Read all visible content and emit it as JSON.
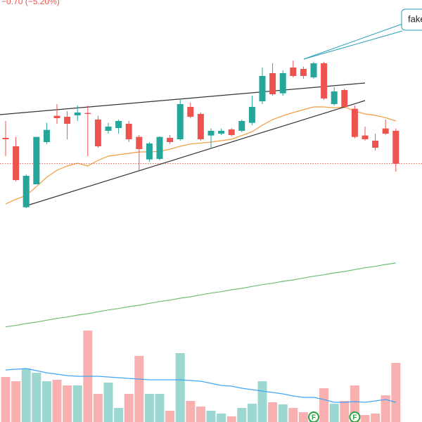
{
  "chart_data": {
    "type": "candlestick",
    "header_text": "−0.70 (−5.20%)",
    "callout_text": "fake",
    "up_color": "#26a69a",
    "down_color": "#ef5350",
    "ylim": [
      7.25,
      16.25
    ],
    "open": [
      13.31,
      13.13,
      11.83,
      12.32,
      13.22,
      13.78,
      13.76,
      13.79,
      13.84,
      13.7,
      13.46,
      13.52,
      13.61,
      13.33,
      12.85,
      12.86,
      13.31,
      13.28,
      13.97,
      13.82,
      13.36,
      13.4,
      13.49,
      13.46,
      13.63,
      14.09,
      14.69,
      14.26,
      14.81,
      14.78,
      14.6,
      14.9,
      14.03,
      14.33,
      13.93,
      13.36,
      13.25,
      13.51,
      13.46
    ],
    "high": [
      13.67,
      13.33,
      12.53,
      13.33,
      13.63,
      14.03,
      13.88,
      14.0,
      14.0,
      13.78,
      13.63,
      13.7,
      13.67,
      13.37,
      13.22,
      13.34,
      13.37,
      14.12,
      14.06,
      13.85,
      13.51,
      13.51,
      13.52,
      13.7,
      14.21,
      14.81,
      14.9,
      14.75,
      14.96,
      14.83,
      14.93,
      14.93,
      14.39,
      14.36,
      14.0,
      13.55,
      13.4,
      13.7,
      13.51
    ],
    "low": [
      12.92,
      12.38,
      11.81,
      12.32,
      13.18,
      13.61,
      13.28,
      13.67,
      12.92,
      13.1,
      13.4,
      13.4,
      13.22,
      12.62,
      12.8,
      12.83,
      13.18,
      13.25,
      13.73,
      13.25,
      13.1,
      13.37,
      13.34,
      13.43,
      13.58,
      14.03,
      14.21,
      14.21,
      14.6,
      14.57,
      14.57,
      14.12,
      14.0,
      13.94,
      13.3,
      13.25,
      13.04,
      13.37,
      12.59
    ],
    "close": [
      13.28,
      12.41,
      12.5,
      13.33,
      13.48,
      13.73,
      13.61,
      13.85,
      13.82,
      13.13,
      13.55,
      13.67,
      13.28,
      13.07,
      13.19,
      13.33,
      13.22,
      14.03,
      13.76,
      13.28,
      13.46,
      13.46,
      13.37,
      13.67,
      13.97,
      14.63,
      14.24,
      14.69,
      14.63,
      14.63,
      14.9,
      14.15,
      14.3,
      13.97,
      13.33,
      13.28,
      13.1,
      13.4,
      12.76
    ],
    "overlays": [
      {
        "color": "#f39c3f",
        "values": [
          11.9,
          12.0,
          12.08,
          12.27,
          12.47,
          12.62,
          12.71,
          12.77,
          12.71,
          12.83,
          12.92,
          12.95,
          12.98,
          13.01,
          13.01,
          13.02,
          13.07,
          13.13,
          13.18,
          13.2,
          13.22,
          13.25,
          13.28,
          13.36,
          13.44,
          13.58,
          13.7,
          13.78,
          13.85,
          13.91,
          13.97,
          13.97,
          13.95,
          13.97,
          13.88,
          13.82,
          13.79,
          13.74,
          13.67
        ]
      },
      {
        "color": "#6fbf73",
        "values": [
          9.28,
          9.31,
          9.35,
          9.38,
          9.42,
          9.46,
          9.49,
          9.53,
          9.56,
          9.6,
          9.64,
          9.67,
          9.71,
          9.74,
          9.78,
          9.82,
          9.85,
          9.89,
          9.92,
          9.96,
          10.0,
          10.03,
          10.07,
          10.1,
          10.14,
          10.18,
          10.21,
          10.25,
          10.28,
          10.32,
          10.36,
          10.39,
          10.43,
          10.46,
          10.5,
          10.54,
          10.57,
          10.61,
          10.64
        ]
      }
    ],
    "vlim": [
      0,
      150
    ],
    "volume": [
      64,
      58,
      76,
      70,
      58,
      60,
      52,
      52,
      130,
      40,
      56,
      20,
      40,
      94,
      40,
      40,
      16,
      98,
      30,
      22,
      16,
      12,
      8,
      20,
      26,
      58,
      28,
      25,
      20,
      14,
      12,
      48,
      26,
      30,
      52,
      10,
      12,
      38,
      84
    ],
    "volume_ma": {
      "color": "#42a5f5",
      "values": [
        74,
        75,
        76,
        73,
        70,
        68,
        66,
        65,
        65,
        65,
        64,
        63,
        62,
        61,
        60,
        60,
        60,
        60,
        59,
        58,
        55,
        52,
        51,
        48,
        46,
        44,
        42,
        40,
        37,
        35,
        35,
        32,
        28,
        28,
        29,
        28,
        30,
        32,
        28
      ]
    },
    "events": [
      {
        "index": 30,
        "label": "F"
      },
      {
        "index": 34,
        "label": "F"
      }
    ]
  }
}
